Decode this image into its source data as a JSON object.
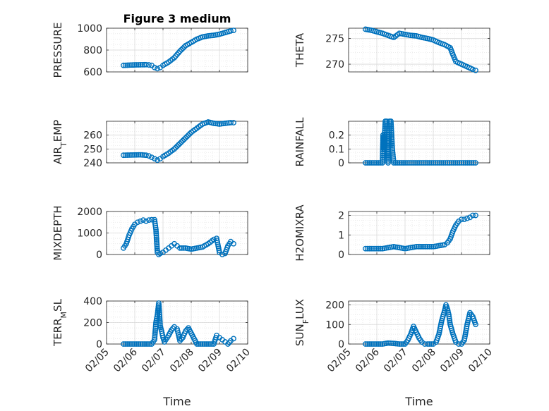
{
  "figure": {
    "title": "Figure 3 medium"
  },
  "colors": {
    "marker": "#0072BD",
    "axis": "#262626",
    "grid": "#d9d9d9",
    "background": "#ffffff"
  },
  "x_axis": {
    "label": "Time",
    "ticks": [
      {
        "value": 5,
        "label": "02/05"
      },
      {
        "value": 6,
        "label": "02/06"
      },
      {
        "value": 7,
        "label": "02/07"
      },
      {
        "value": 8,
        "label": "02/08"
      },
      {
        "value": 9,
        "label": "02/09"
      },
      {
        "value": 10,
        "label": "02/10"
      }
    ],
    "xlim": [
      5,
      10
    ]
  },
  "chart_data": [
    {
      "id": "pressure",
      "type": "scatter",
      "ylabel": "PRESSURE",
      "ylim": [
        600,
        1000
      ],
      "yticks": [
        600,
        800,
        1000
      ],
      "grid": true,
      "minor_grid": true,
      "series": [
        {
          "x": [
            5.6,
            5.8,
            6.0,
            6.2,
            6.4,
            6.5,
            6.6,
            6.7,
            6.8,
            6.9,
            7.0,
            7.2,
            7.4,
            7.6,
            7.8,
            8.0,
            8.2,
            8.4,
            8.6,
            8.8,
            9.0,
            9.2,
            9.4,
            9.5
          ],
          "y": [
            660,
            662,
            664,
            665,
            666,
            664,
            660,
            640,
            630,
            640,
            660,
            690,
            730,
            790,
            840,
            870,
            900,
            920,
            930,
            935,
            945,
            960,
            975,
            980
          ]
        }
      ]
    },
    {
      "id": "theta",
      "type": "scatter",
      "ylabel": "THETA",
      "ylim": [
        268.5,
        277
      ],
      "yticks": [
        270,
        275
      ],
      "grid": true,
      "minor_grid": true,
      "series": [
        {
          "x": [
            5.6,
            5.8,
            6.0,
            6.2,
            6.4,
            6.6,
            6.8,
            7.0,
            7.2,
            7.4,
            7.6,
            7.8,
            8.0,
            8.2,
            8.4,
            8.6,
            8.7,
            8.8,
            9.0,
            9.2,
            9.4,
            9.5
          ],
          "y": [
            276.8,
            276.6,
            276.3,
            276.0,
            275.6,
            275.2,
            276.0,
            275.8,
            275.6,
            275.5,
            275.2,
            275.0,
            274.7,
            274.2,
            273.8,
            273.2,
            271.8,
            270.5,
            270.0,
            269.5,
            269.0,
            268.8
          ]
        }
      ]
    },
    {
      "id": "air_temp",
      "type": "scatter",
      "ylabel": "AIR",
      "ylabel_sub": "T",
      "ylabel_tail": "EMP",
      "ylim": [
        240,
        270
      ],
      "yticks": [
        240,
        250,
        260
      ],
      "grid": true,
      "minor_grid": true,
      "series": [
        {
          "x": [
            5.6,
            5.8,
            6.0,
            6.2,
            6.4,
            6.5,
            6.6,
            6.7,
            6.8,
            6.9,
            7.0,
            7.2,
            7.4,
            7.6,
            7.8,
            8.0,
            8.2,
            8.4,
            8.6,
            8.8,
            9.0,
            9.2,
            9.4,
            9.5
          ],
          "y": [
            245.5,
            245.6,
            245.7,
            245.8,
            245.5,
            245.0,
            244.0,
            243.0,
            242.0,
            243.0,
            244.5,
            247.0,
            250.0,
            254.0,
            258.0,
            262.0,
            265.0,
            268.0,
            269.5,
            268.5,
            268.0,
            268.5,
            269.0,
            269.0
          ]
        }
      ]
    },
    {
      "id": "rainfall",
      "type": "scatter",
      "ylabel": "RAINFALL",
      "ylim": [
        0,
        0.3
      ],
      "yticks": [
        0,
        0.1,
        0.2
      ],
      "grid": true,
      "minor_grid": true,
      "series": [
        {
          "x": [
            5.6,
            5.8,
            6.0,
            6.2,
            6.22,
            6.25,
            6.3,
            6.35,
            6.4,
            6.45,
            6.5,
            6.55,
            6.6,
            6.8,
            7.0,
            7.5,
            8.0,
            8.5,
            9.0,
            9.5
          ],
          "y": [
            0,
            0,
            0,
            0,
            0.2,
            0.1,
            0.3,
            0.3,
            0,
            0.3,
            0.3,
            0.1,
            0,
            0,
            0,
            0,
            0,
            0,
            0,
            0
          ]
        }
      ]
    },
    {
      "id": "mixdepth",
      "type": "scatter",
      "ylabel": "MIXDEPTH",
      "ylim": [
        0,
        2000
      ],
      "yticks": [
        0,
        1000,
        2000
      ],
      "grid": true,
      "minor_grid": true,
      "series": [
        {
          "x": [
            5.6,
            5.7,
            5.8,
            5.9,
            6.0,
            6.1,
            6.2,
            6.3,
            6.4,
            6.5,
            6.6,
            6.7,
            6.75,
            6.8,
            6.85,
            6.9,
            7.0,
            7.1,
            7.2,
            7.3,
            7.4,
            7.5,
            7.6,
            7.8,
            8.0,
            8.2,
            8.4,
            8.6,
            8.8,
            8.9,
            9.0,
            9.1,
            9.2,
            9.3,
            9.4,
            9.5
          ],
          "y": [
            300,
            500,
            900,
            1200,
            1400,
            1500,
            1550,
            1600,
            1550,
            1600,
            1620,
            1620,
            1150,
            100,
            0,
            50,
            100,
            200,
            300,
            400,
            500,
            400,
            300,
            300,
            250,
            300,
            350,
            500,
            700,
            750,
            100,
            0,
            50,
            400,
            600,
            500
          ]
        }
      ]
    },
    {
      "id": "h2omixra",
      "type": "scatter",
      "ylabel": "H2OMIXRA",
      "ylim": [
        0,
        2.2
      ],
      "yticks": [
        0,
        1,
        2
      ],
      "grid": true,
      "minor_grid": true,
      "series": [
        {
          "x": [
            5.6,
            5.8,
            6.0,
            6.2,
            6.4,
            6.6,
            6.8,
            7.0,
            7.2,
            7.4,
            7.6,
            7.8,
            8.0,
            8.2,
            8.4,
            8.5,
            8.6,
            8.7,
            8.8,
            8.9,
            9.0,
            9.1,
            9.2,
            9.3,
            9.4,
            9.5
          ],
          "y": [
            0.3,
            0.3,
            0.3,
            0.3,
            0.35,
            0.4,
            0.35,
            0.3,
            0.35,
            0.4,
            0.4,
            0.4,
            0.4,
            0.45,
            0.5,
            0.6,
            0.8,
            1.2,
            1.5,
            1.7,
            1.8,
            1.8,
            1.85,
            1.9,
            2.0,
            2.0
          ]
        }
      ]
    },
    {
      "id": "terr_msl",
      "type": "scatter",
      "ylabel": "TERR",
      "ylabel_sub": "M",
      "ylabel_tail": "SL",
      "ylim": [
        0,
        400
      ],
      "yticks": [
        0,
        200,
        400
      ],
      "grid": true,
      "minor_grid": true,
      "series": [
        {
          "x": [
            5.6,
            5.8,
            6.0,
            6.2,
            6.4,
            6.6,
            6.7,
            6.75,
            6.8,
            6.85,
            6.9,
            6.95,
            7.0,
            7.05,
            7.1,
            7.2,
            7.3,
            7.4,
            7.5,
            7.6,
            7.7,
            7.8,
            7.9,
            8.0,
            8.1,
            8.2,
            8.4,
            8.6,
            8.8,
            8.9,
            9.0,
            9.1,
            9.2,
            9.3,
            9.4,
            9.5
          ],
          "y": [
            0,
            0,
            0,
            0,
            0,
            0,
            40,
            200,
            270,
            380,
            170,
            120,
            60,
            20,
            40,
            80,
            130,
            160,
            140,
            30,
            60,
            120,
            150,
            100,
            50,
            0,
            0,
            0,
            0,
            80,
            60,
            40,
            20,
            0,
            30,
            50
          ]
        }
      ]
    },
    {
      "id": "sun_flux",
      "type": "scatter",
      "ylabel": "SUN",
      "ylabel_sub": "F",
      "ylabel_tail": "LUX",
      "ylim": [
        0,
        220
      ],
      "yticks": [
        0,
        100,
        200
      ],
      "grid": true,
      "minor_grid": true,
      "series": [
        {
          "x": [
            5.6,
            5.8,
            6.0,
            6.2,
            6.4,
            6.6,
            6.8,
            7.0,
            7.1,
            7.2,
            7.3,
            7.4,
            7.5,
            7.6,
            7.7,
            7.8,
            8.0,
            8.1,
            8.2,
            8.3,
            8.4,
            8.45,
            8.5,
            8.55,
            8.6,
            8.7,
            8.8,
            8.9,
            9.0,
            9.1,
            9.2,
            9.3,
            9.4,
            9.5
          ],
          "y": [
            0,
            0,
            0,
            0,
            5,
            3,
            0,
            0,
            20,
            50,
            90,
            60,
            30,
            10,
            0,
            0,
            0,
            10,
            50,
            120,
            170,
            200,
            180,
            150,
            100,
            50,
            10,
            0,
            0,
            20,
            100,
            160,
            140,
            100
          ]
        }
      ]
    }
  ]
}
